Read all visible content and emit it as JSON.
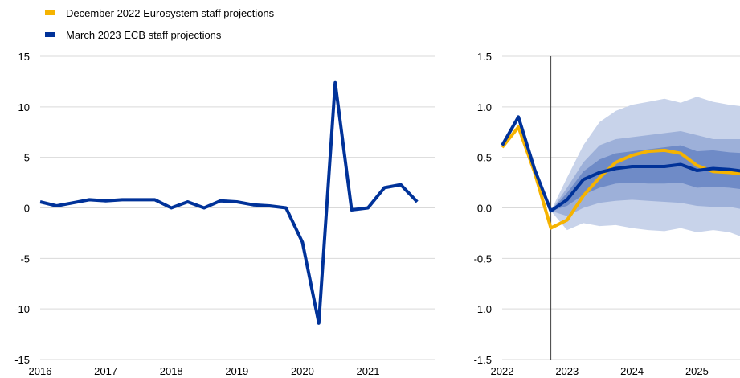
{
  "legend": [
    {
      "label": "December 2022 Eurosystem staff projections",
      "color": "#f5b301"
    },
    {
      "label": "March 2023 ECB staff projections",
      "color": "#003299"
    }
  ],
  "chart_data": [
    {
      "type": "line",
      "panel": "left",
      "x_ticks": [
        "2016",
        "2017",
        "2018",
        "2019",
        "2020",
        "2021"
      ],
      "y_ticks": [
        "15",
        "10",
        "5",
        "0",
        "-5",
        "-10",
        "-15"
      ],
      "ylim": [
        -15,
        15
      ],
      "grid": "horizontal",
      "series": [
        {
          "name": "March 2023 ECB staff projections",
          "color": "#003299",
          "x": [
            "2016Q1",
            "2016Q2",
            "2016Q3",
            "2016Q4",
            "2017Q1",
            "2017Q2",
            "2017Q3",
            "2017Q4",
            "2018Q1",
            "2018Q2",
            "2018Q3",
            "2018Q4",
            "2019Q1",
            "2019Q2",
            "2019Q3",
            "2019Q4",
            "2020Q1",
            "2020Q2",
            "2020Q3",
            "2020Q4",
            "2021Q1",
            "2021Q2",
            "2021Q3",
            "2021Q4"
          ],
          "values": [
            0.6,
            0.2,
            0.5,
            0.8,
            0.7,
            0.8,
            0.8,
            0.8,
            0.0,
            0.6,
            0.0,
            0.7,
            0.6,
            0.3,
            0.2,
            0.0,
            -3.4,
            -11.4,
            12.4,
            -0.2,
            0.0,
            2.0,
            2.3,
            0.6
          ]
        }
      ]
    },
    {
      "type": "line",
      "panel": "right",
      "x_ticks": [
        "2022",
        "2023",
        "2024",
        "2025"
      ],
      "y_ticks": [
        "1.5",
        "1.0",
        "0.5",
        "0.0",
        "-0.5",
        "-1.0",
        "-1.5"
      ],
      "ylim": [
        -1.5,
        1.5
      ],
      "grid": "horizontal",
      "vertical_marker": "2022Q4",
      "quarters": [
        "2022Q1",
        "2022Q2",
        "2022Q3",
        "2022Q4",
        "2023Q1",
        "2023Q2",
        "2023Q3",
        "2023Q4",
        "2024Q1",
        "2024Q2",
        "2024Q3",
        "2024Q4",
        "2025Q1",
        "2025Q2",
        "2025Q3",
        "2025Q4"
      ],
      "bands": [
        {
          "color": "#c8d3ea",
          "lower": [
            null,
            null,
            null,
            -0.03,
            -0.22,
            -0.15,
            -0.18,
            -0.17,
            -0.2,
            -0.22,
            -0.23,
            -0.2,
            -0.24,
            -0.22,
            -0.24,
            -0.3
          ],
          "upper": [
            null,
            null,
            null,
            -0.03,
            0.3,
            0.62,
            0.85,
            0.96,
            1.02,
            1.05,
            1.08,
            1.04,
            1.1,
            1.05,
            1.02,
            1.0
          ]
        },
        {
          "color": "#9db0d9",
          "lower": [
            null,
            null,
            null,
            -0.03,
            -0.08,
            0.0,
            0.05,
            0.07,
            0.08,
            0.07,
            0.06,
            0.05,
            0.02,
            0.01,
            0.01,
            -0.02
          ],
          "upper": [
            null,
            null,
            null,
            -0.03,
            0.2,
            0.45,
            0.62,
            0.68,
            0.7,
            0.72,
            0.74,
            0.76,
            0.72,
            0.68,
            0.68,
            0.68
          ]
        },
        {
          "color": "#6f8bc7",
          "lower": [
            null,
            null,
            null,
            -0.03,
            0.02,
            0.13,
            0.2,
            0.24,
            0.25,
            0.24,
            0.24,
            0.25,
            0.2,
            0.21,
            0.2,
            0.18
          ],
          "upper": [
            null,
            null,
            null,
            -0.03,
            0.15,
            0.36,
            0.48,
            0.54,
            0.56,
            0.58,
            0.6,
            0.62,
            0.56,
            0.57,
            0.55,
            0.54
          ]
        }
      ],
      "series": [
        {
          "name": "December 2022 Eurosystem staff projections",
          "color": "#f5b301",
          "x": [
            "2022Q1",
            "2022Q2",
            "2022Q3",
            "2022Q4",
            "2023Q1",
            "2023Q2",
            "2023Q3",
            "2023Q4",
            "2024Q1",
            "2024Q2",
            "2024Q3",
            "2024Q4",
            "2025Q1",
            "2025Q2",
            "2025Q3",
            "2025Q4"
          ],
          "values": [
            0.6,
            0.8,
            0.35,
            -0.2,
            -0.12,
            0.12,
            0.3,
            0.45,
            0.52,
            0.56,
            0.57,
            0.54,
            0.42,
            0.36,
            0.35,
            0.33
          ]
        },
        {
          "name": "March 2023 ECB staff projections",
          "color": "#003299",
          "x": [
            "2022Q1",
            "2022Q2",
            "2022Q3",
            "2022Q4",
            "2023Q1",
            "2023Q2",
            "2023Q3",
            "2023Q4",
            "2024Q1",
            "2024Q2",
            "2024Q3",
            "2024Q4",
            "2025Q1",
            "2025Q2",
            "2025Q3",
            "2025Q4"
          ],
          "values": [
            0.62,
            0.9,
            0.38,
            -0.03,
            0.08,
            0.28,
            0.35,
            0.39,
            0.41,
            0.41,
            0.41,
            0.43,
            0.37,
            0.39,
            0.38,
            0.36
          ]
        }
      ]
    }
  ]
}
